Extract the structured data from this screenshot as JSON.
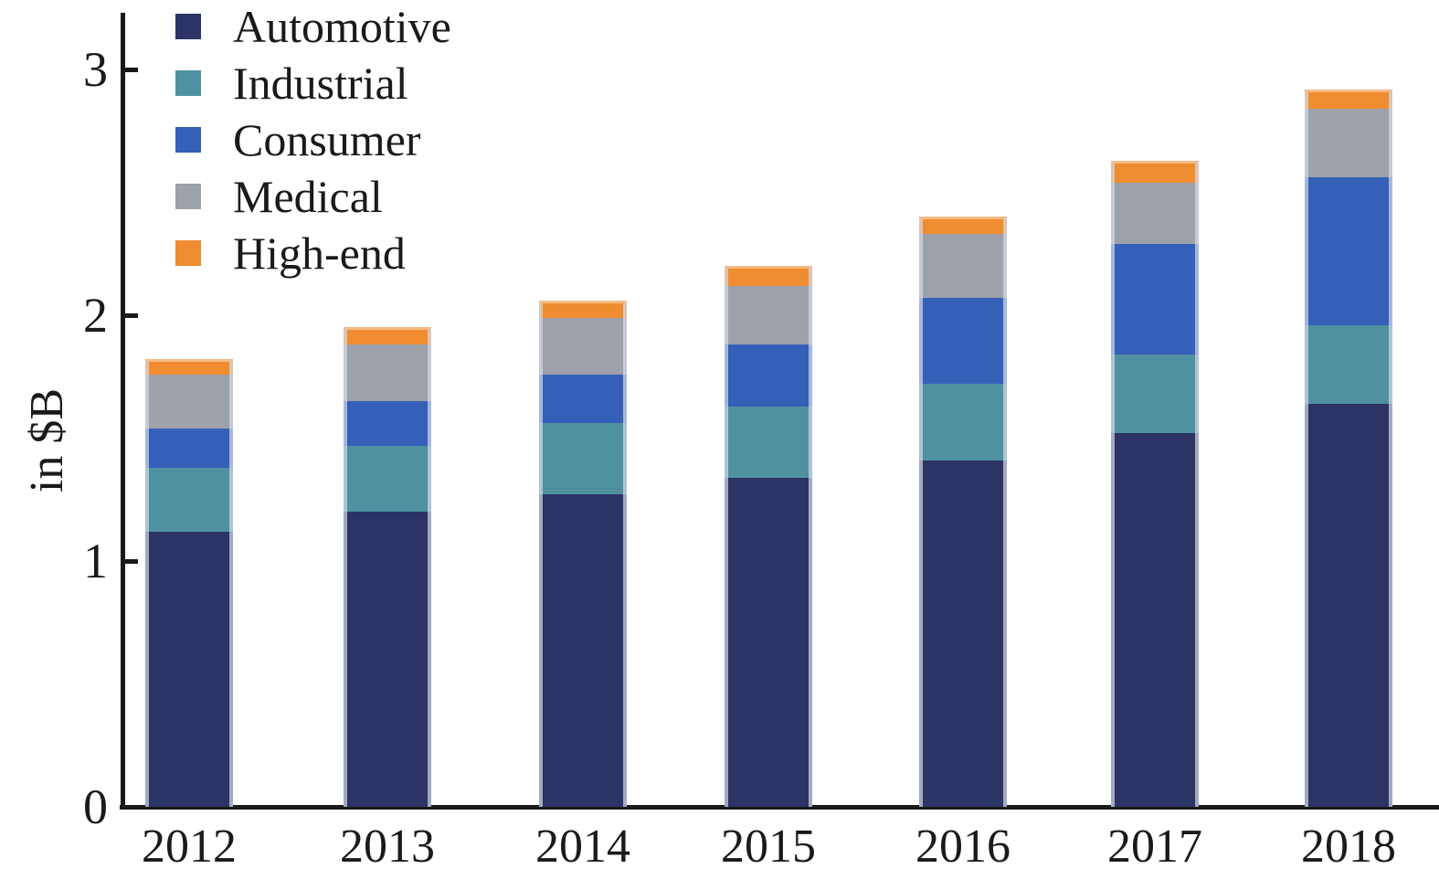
{
  "chart_data": {
    "type": "bar",
    "stacked": true,
    "title": "",
    "xlabel": "",
    "ylabel": "in $B",
    "ylim": [
      0,
      3
    ],
    "ytick_labels": [
      "0",
      "1",
      "2",
      "3"
    ],
    "ytick_values": [
      0,
      1,
      2,
      3
    ],
    "grid": false,
    "legend_position": "upper-left",
    "categories": [
      "2012",
      "2013",
      "2014",
      "2015",
      "2016",
      "2017",
      "2018"
    ],
    "series": [
      {
        "name": "Automotive",
        "color": "#2b3465",
        "values": [
          1.12,
          1.2,
          1.27,
          1.34,
          1.41,
          1.52,
          1.64
        ]
      },
      {
        "name": "Industrial",
        "color": "#4f91a1",
        "values": [
          0.26,
          0.27,
          0.29,
          0.29,
          0.31,
          0.32,
          0.32
        ]
      },
      {
        "name": "Consumer",
        "color": "#3560b8",
        "values": [
          0.16,
          0.18,
          0.2,
          0.25,
          0.35,
          0.45,
          0.6
        ]
      },
      {
        "name": "Medical",
        "color": "#9da1a9",
        "values": [
          0.22,
          0.23,
          0.23,
          0.24,
          0.26,
          0.25,
          0.28
        ]
      },
      {
        "name": "High-end",
        "color": "#ef8c30",
        "values": [
          0.06,
          0.07,
          0.07,
          0.08,
          0.07,
          0.09,
          0.08
        ]
      }
    ],
    "totals": [
      1.82,
      1.95,
      2.06,
      2.2,
      2.4,
      2.63,
      2.92
    ]
  },
  "colors": {
    "axis": "#1a1a1a",
    "background": "#ffffff"
  }
}
